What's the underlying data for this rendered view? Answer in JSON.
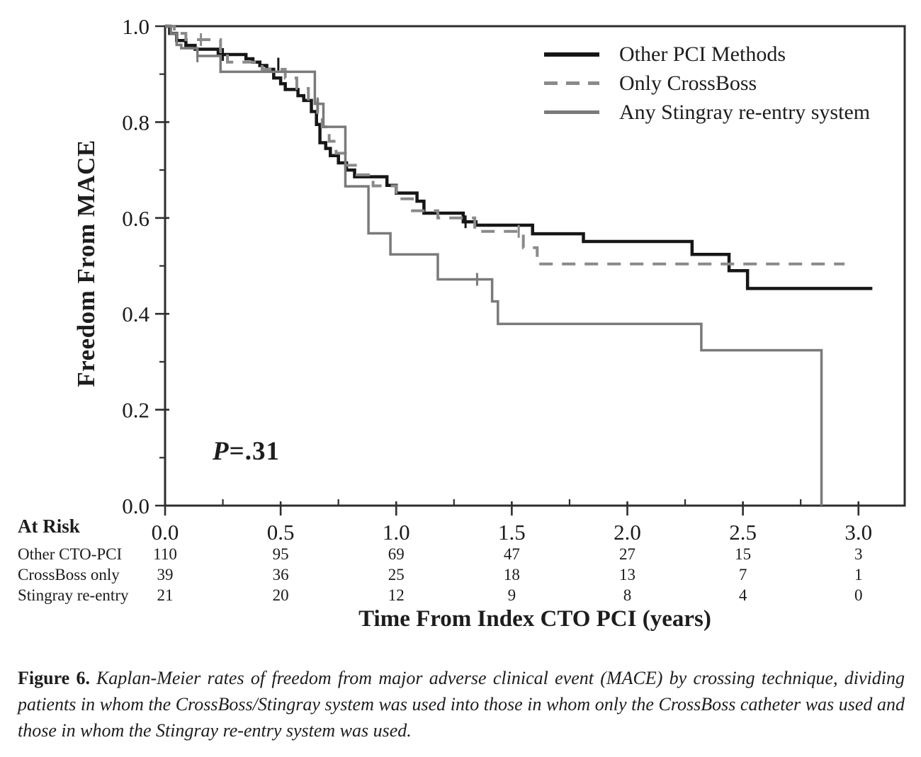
{
  "chart_data": {
    "type": "line",
    "subtype": "kaplan-meier-step",
    "title": "",
    "xlabel": "Time From Index CTO PCI (years)",
    "ylabel": "Freedom From MACE",
    "xlim": [
      0,
      3.2
    ],
    "ylim": [
      0,
      1.0
    ],
    "grid": false,
    "legend_position": "top-right-inside",
    "x_major_ticks": [
      0.0,
      0.5,
      1.0,
      1.5,
      2.0,
      2.5,
      3.0
    ],
    "x_tick_labels": [
      "0.0",
      "0.5",
      "1.0",
      "1.5",
      "2.0",
      "2.5",
      "3.0"
    ],
    "x_minor_ticks": [
      0.25,
      0.75,
      1.25,
      1.75,
      2.25,
      2.75
    ],
    "y_major_ticks": [
      0.0,
      0.2,
      0.4,
      0.6,
      0.8,
      1.0
    ],
    "y_tick_labels": [
      "0.0",
      "0.2",
      "0.4",
      "0.6",
      "0.8",
      "1.0"
    ],
    "y_minor_ticks": [
      0.1,
      0.3,
      0.5,
      0.7,
      0.9
    ],
    "series": [
      {
        "name": "Other PCI Methods",
        "color": "#161616",
        "style": "solid",
        "line_width": 4.5,
        "steps": [
          [
            0,
            1.0
          ],
          [
            0.02,
            0.985
          ],
          [
            0.05,
            0.97
          ],
          [
            0.09,
            0.96
          ],
          [
            0.13,
            0.952
          ],
          [
            0.23,
            0.941
          ],
          [
            0.35,
            0.932
          ],
          [
            0.38,
            0.925
          ],
          [
            0.41,
            0.918
          ],
          [
            0.44,
            0.91
          ],
          [
            0.47,
            0.892
          ],
          [
            0.5,
            0.88
          ],
          [
            0.52,
            0.868
          ],
          [
            0.575,
            0.855
          ],
          [
            0.6,
            0.845
          ],
          [
            0.633,
            0.822
          ],
          [
            0.655,
            0.795
          ],
          [
            0.67,
            0.757
          ],
          [
            0.695,
            0.745
          ],
          [
            0.715,
            0.73
          ],
          [
            0.75,
            0.715
          ],
          [
            0.785,
            0.7
          ],
          [
            0.82,
            0.686
          ],
          [
            0.96,
            0.668
          ],
          [
            1.0,
            0.652
          ],
          [
            1.09,
            0.635
          ],
          [
            1.12,
            0.61
          ],
          [
            1.29,
            0.592
          ],
          [
            1.345,
            0.585
          ],
          [
            1.59,
            0.567
          ],
          [
            1.81,
            0.551
          ],
          [
            2.28,
            0.524
          ],
          [
            2.44,
            0.49
          ],
          [
            2.52,
            0.453
          ]
        ],
        "end_time": 3.06,
        "censor_marks": [
          [
            0.25,
            0.941
          ],
          [
            0.49,
            0.921
          ],
          [
            1.3,
            0.592
          ]
        ]
      },
      {
        "name": "Only CrossBoss",
        "color": "#8a8a8a",
        "style": "dashed",
        "line_width": 4,
        "steps": [
          [
            0,
            1.0
          ],
          [
            0.04,
            0.985
          ],
          [
            0.09,
            0.972
          ],
          [
            0.24,
            0.948
          ],
          [
            0.27,
            0.925
          ],
          [
            0.42,
            0.91
          ],
          [
            0.52,
            0.892
          ],
          [
            0.57,
            0.87
          ],
          [
            0.62,
            0.845
          ],
          [
            0.66,
            0.82
          ],
          [
            0.68,
            0.79
          ],
          [
            0.71,
            0.76
          ],
          [
            0.74,
            0.735
          ],
          [
            0.78,
            0.71
          ],
          [
            0.83,
            0.69
          ],
          [
            0.9,
            0.667
          ],
          [
            1.0,
            0.64
          ],
          [
            1.07,
            0.615
          ],
          [
            1.18,
            0.6
          ],
          [
            1.34,
            0.572
          ],
          [
            1.55,
            0.538
          ],
          [
            1.61,
            0.504
          ]
        ],
        "end_time": 2.94,
        "censor_marks": [
          [
            0.155,
            0.972
          ],
          [
            0.78,
            0.71
          ],
          [
            1.53,
            0.572
          ]
        ]
      },
      {
        "name": "Any Stingray re-entry system",
        "color": "#7a7a7a",
        "style": "solid",
        "line_width": 3.5,
        "steps": [
          [
            0,
            1.0
          ],
          [
            0.025,
            0.985
          ],
          [
            0.05,
            0.961
          ],
          [
            0.07,
            0.954
          ],
          [
            0.14,
            0.938
          ],
          [
            0.24,
            0.905
          ],
          [
            0.648,
            0.838
          ],
          [
            0.685,
            0.79
          ],
          [
            0.78,
            0.666
          ],
          [
            0.88,
            0.568
          ],
          [
            0.975,
            0.524
          ],
          [
            1.18,
            0.472
          ],
          [
            1.415,
            0.426
          ],
          [
            1.44,
            0.379
          ],
          [
            2.32,
            0.324
          ],
          [
            2.84,
            0.0
          ]
        ],
        "end_time": 2.84,
        "censor_marks": [
          [
            0.14,
            0.938
          ],
          [
            0.66,
            0.838
          ],
          [
            1.35,
            0.472
          ]
        ]
      }
    ],
    "annotation": {
      "p_label": "P",
      "p_value": "=.31"
    }
  },
  "at_risk": {
    "header": "At Risk",
    "time_points": [
      0.0,
      0.5,
      1.0,
      1.5,
      2.0,
      2.5,
      3.0
    ],
    "rows": [
      {
        "label": "Other CTO-PCI",
        "counts": [
          "110",
          "95",
          "69",
          "47",
          "27",
          "15",
          "3"
        ]
      },
      {
        "label": "CrossBoss only",
        "counts": [
          "39",
          "36",
          "25",
          "18",
          "13",
          "7",
          "1"
        ]
      },
      {
        "label": "Stingray re-entry",
        "counts": [
          "21",
          "20",
          "12",
          "9",
          "8",
          "4",
          "0"
        ]
      }
    ]
  },
  "caption": {
    "label": "Figure 6.",
    "text": "Kaplan-Meier rates of freedom from major adverse clinical event (MACE) by crossing technique, dividing patients in whom the CrossBoss/Stingray system was used into those in whom only the CrossBoss catheter was used and those in whom the Stingray re-entry system was used."
  },
  "colors": {
    "background": "#ffffff",
    "axis": "#2e2e2e",
    "text": "#1d1d1d"
  }
}
